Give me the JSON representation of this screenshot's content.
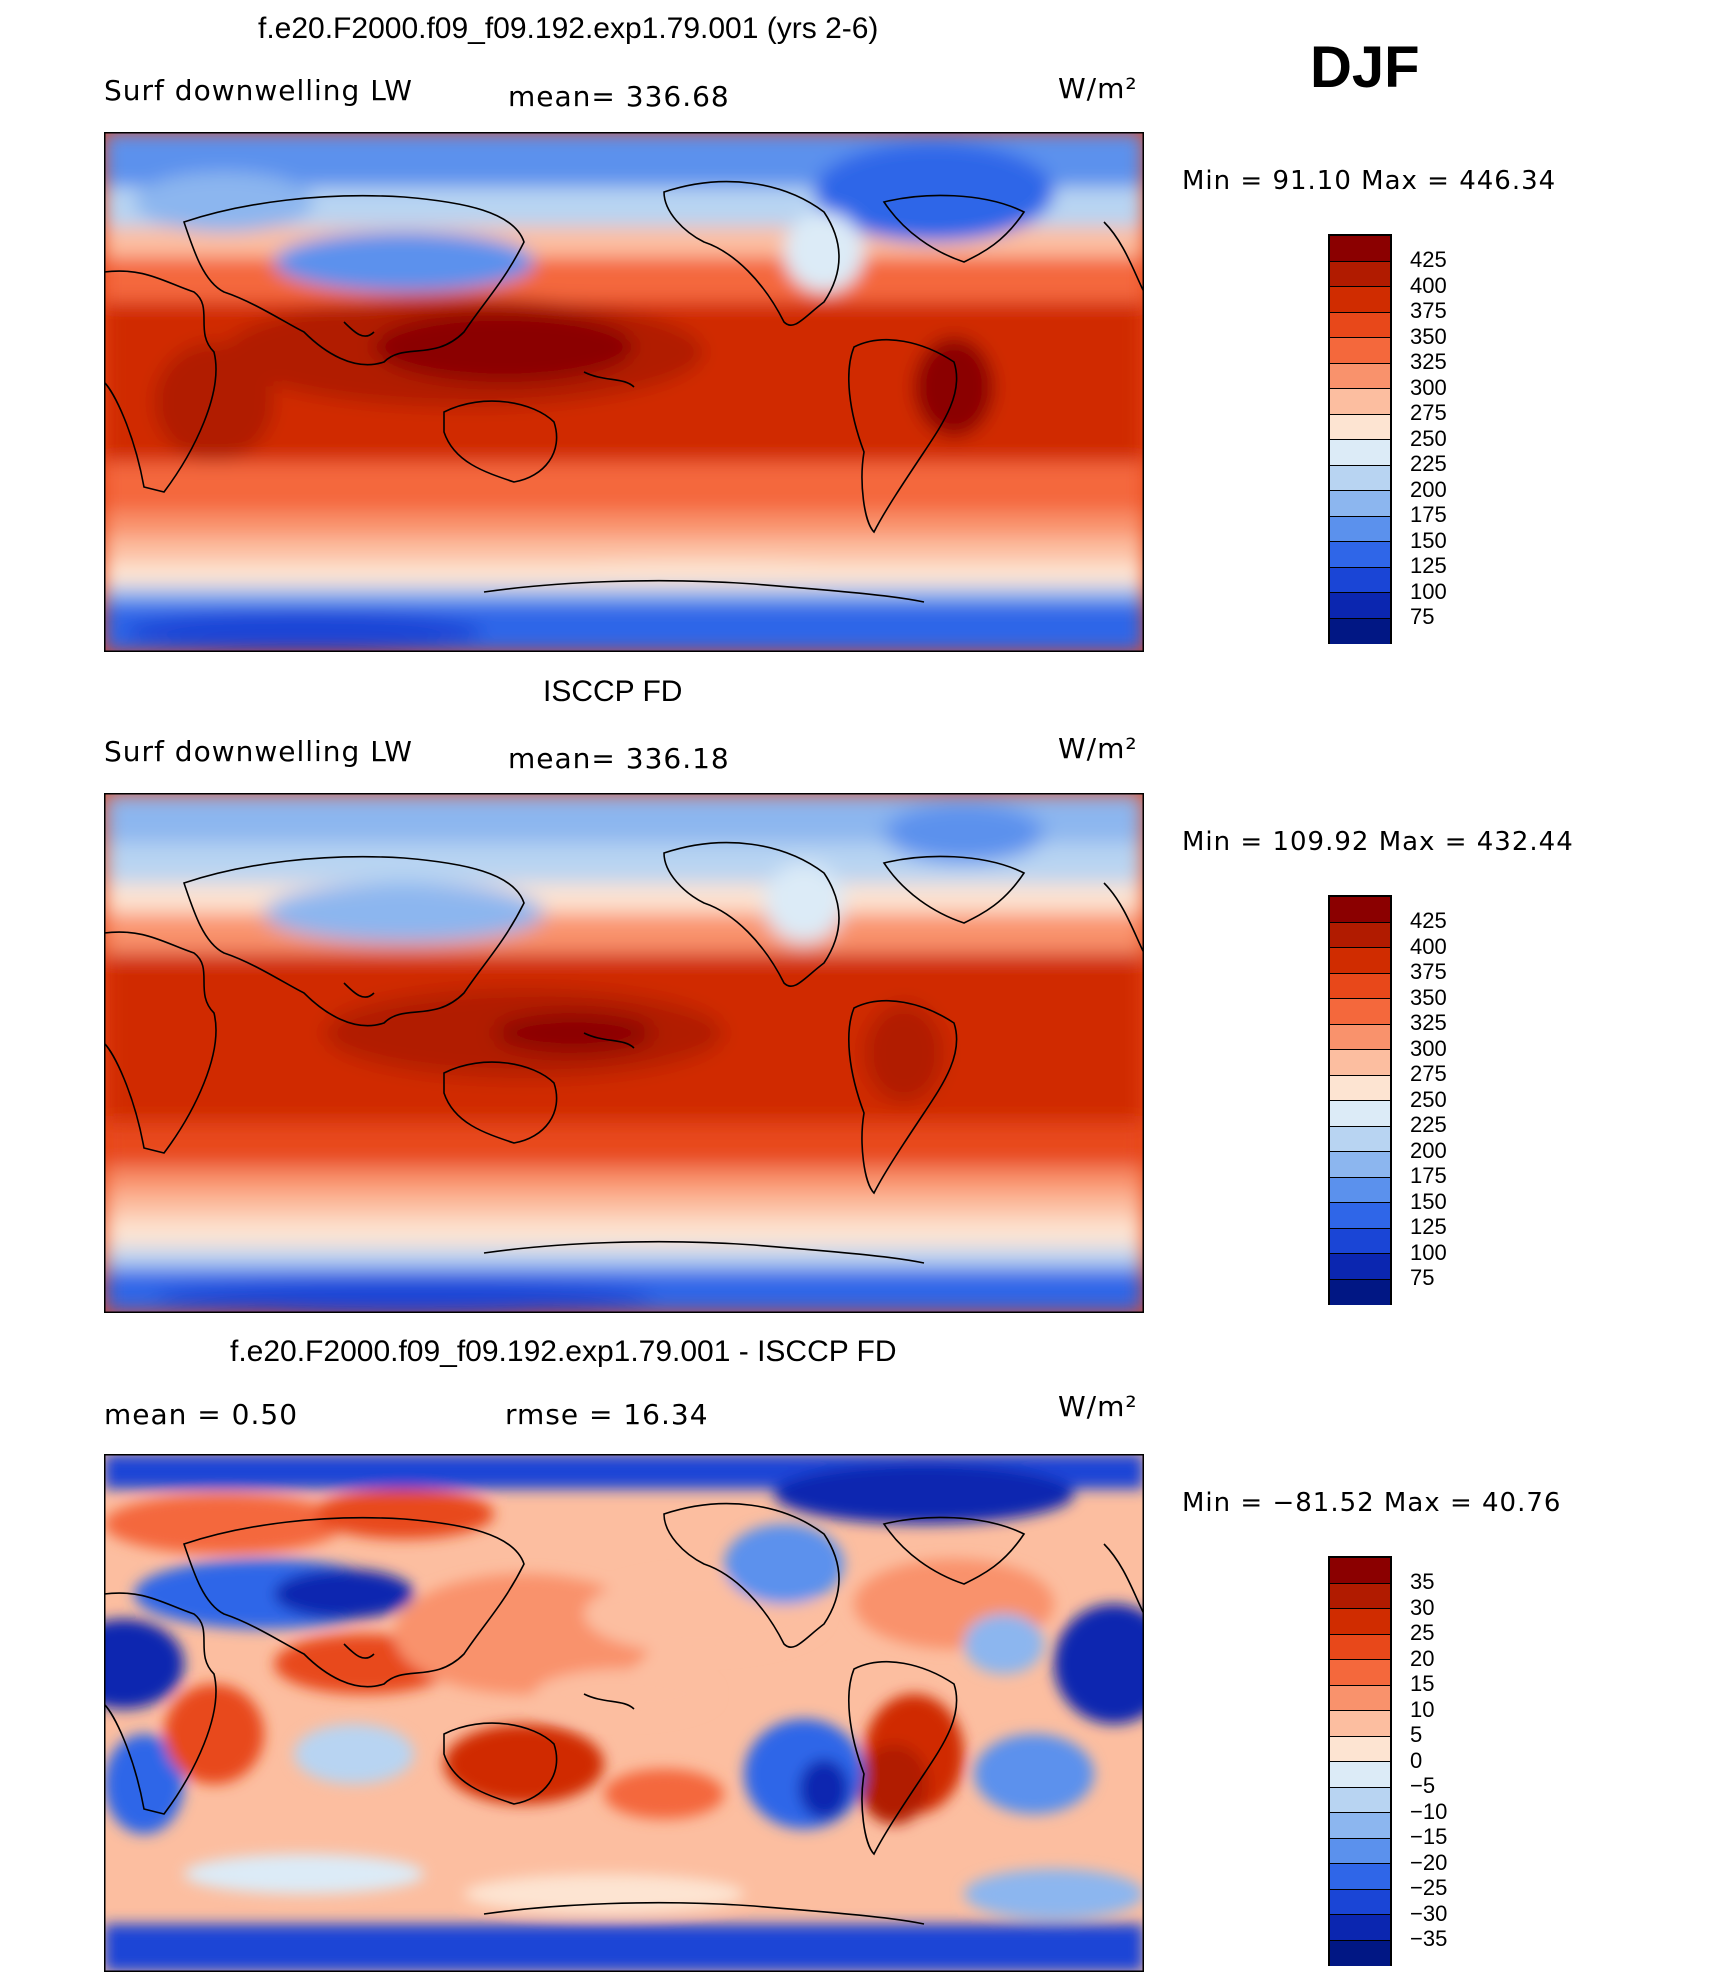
{
  "season": "DJF",
  "panels": [
    {
      "title": "f.e20.F2000.f09_f09.192.exp1.79.001 (yrs 2-6)",
      "left_label": "Surf  downwelling  LW",
      "mid_label": "mean=  336.68",
      "units": "W/m²",
      "min_max": "Min  =    91.10  Max  =  446.34",
      "colorbar": {
        "labels": [
          "425",
          "400",
          "375",
          "350",
          "325",
          "300",
          "275",
          "250",
          "225",
          "200",
          "175",
          "150",
          "125",
          "100",
          "75"
        ],
        "colors": [
          "#8b0000",
          "#b11b00",
          "#d02c00",
          "#e8481a",
          "#f4683c",
          "#f9926c",
          "#fcbea0",
          "#fde4d2",
          "#dcebf7",
          "#b8d4f2",
          "#8cb6ef",
          "#5b91ed",
          "#2f66e8",
          "#1a45d6",
          "#0b26b0",
          "#011784"
        ]
      }
    },
    {
      "title": "ISCCP FD",
      "left_label": "Surf  downwelling  LW",
      "mid_label": "mean=  336.18",
      "units": "W/m²",
      "min_max": "Min  =  109.92  Max  =  432.44",
      "colorbar": {
        "labels": [
          "425",
          "400",
          "375",
          "350",
          "325",
          "300",
          "275",
          "250",
          "225",
          "200",
          "175",
          "150",
          "125",
          "100",
          "75"
        ],
        "colors": [
          "#8b0000",
          "#b11b00",
          "#d02c00",
          "#e8481a",
          "#f4683c",
          "#f9926c",
          "#fcbea0",
          "#fde4d2",
          "#dcebf7",
          "#b8d4f2",
          "#8cb6ef",
          "#5b91ed",
          "#2f66e8",
          "#1a45d6",
          "#0b26b0",
          "#011784"
        ]
      }
    },
    {
      "title": "f.e20.F2000.f09_f09.192.exp1.79.001 - ISCCP FD",
      "left_label": "mean  =      0.50",
      "mid_label": "rmse  =     16.34",
      "units": "W/m²",
      "min_max": "Min  =  −81.52  Max  =    40.76",
      "colorbar": {
        "labels": [
          "35",
          "30",
          "25",
          "20",
          "15",
          "10",
          "5",
          "0",
          "−5",
          "−10",
          "−15",
          "−20",
          "−25",
          "−30",
          "−35"
        ],
        "colors": [
          "#8b0000",
          "#b11b00",
          "#d02c00",
          "#e8481a",
          "#f4683c",
          "#f9926c",
          "#fcbea0",
          "#fde4d2",
          "#dcebf7",
          "#b8d4f2",
          "#8cb6ef",
          "#5b91ed",
          "#2f66e8",
          "#1a45d6",
          "#0b26b0",
          "#011784"
        ]
      }
    }
  ]
}
